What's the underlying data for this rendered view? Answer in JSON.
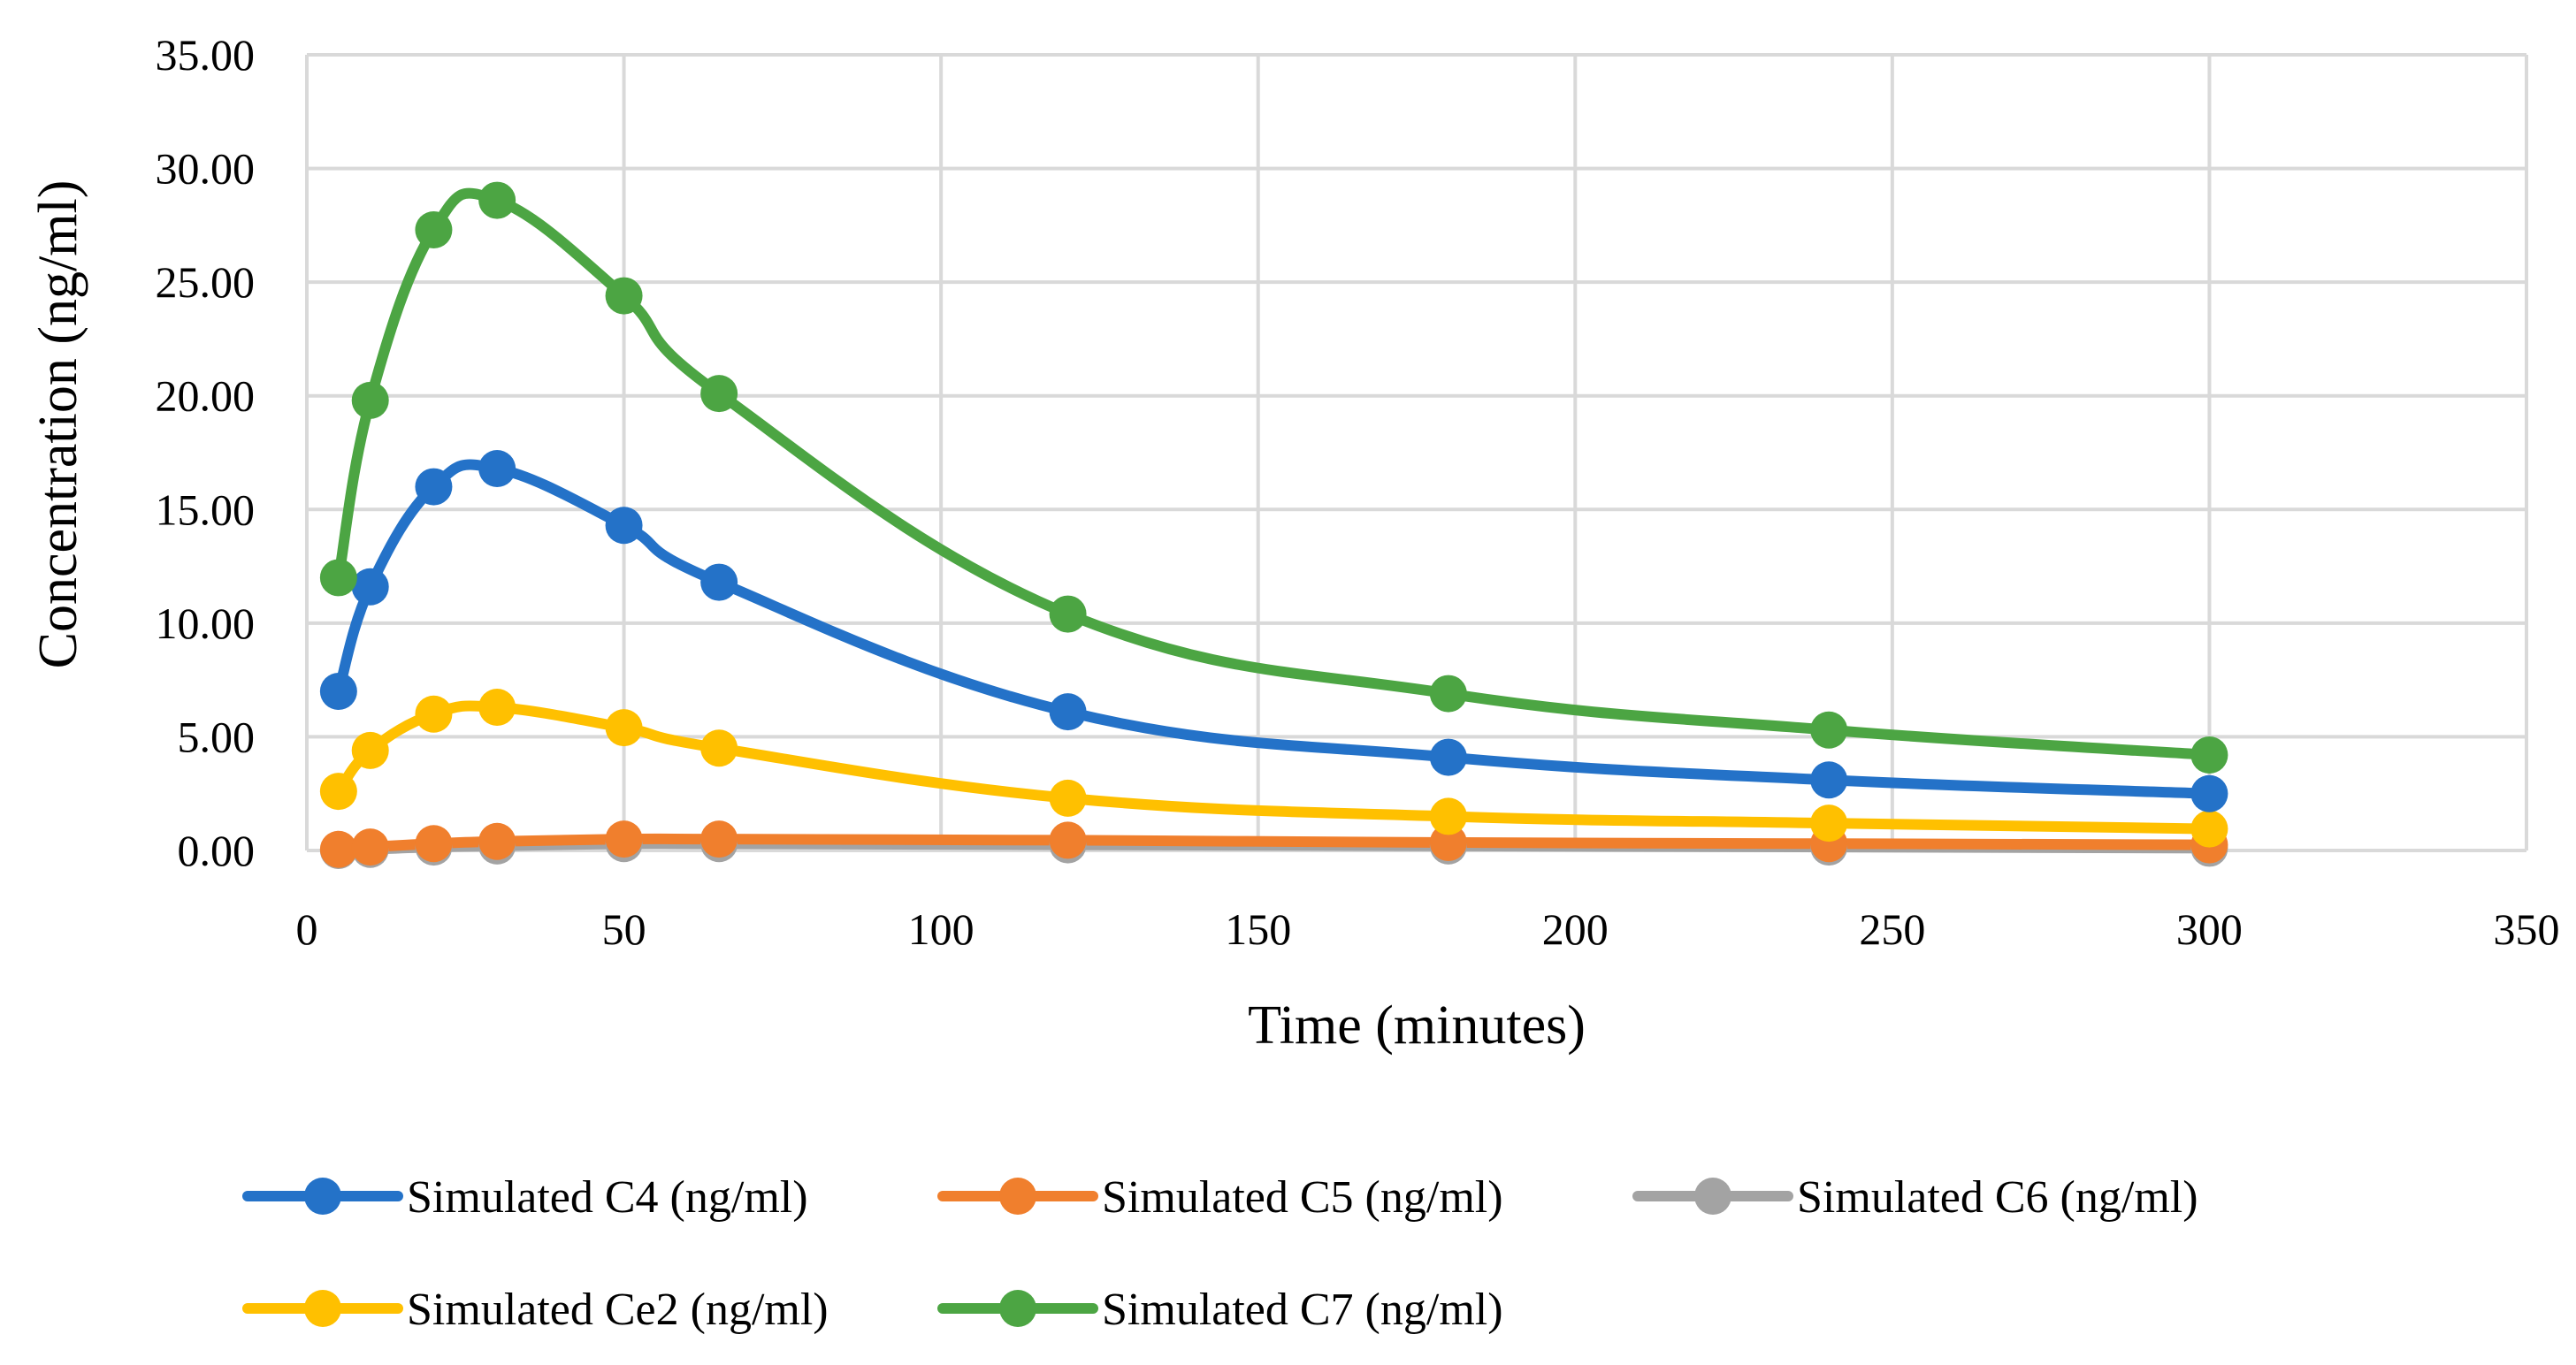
{
  "chart_data": {
    "type": "line",
    "title": "",
    "xlabel": "Time (minutes)",
    "ylabel": "Concentration (ng/ml)",
    "xlim": [
      0,
      350
    ],
    "ylim": [
      0,
      35
    ],
    "x_ticks": [
      "0",
      "50",
      "100",
      "150",
      "200",
      "250",
      "300",
      "350"
    ],
    "y_ticks": [
      "0.00",
      "5.00",
      "10.00",
      "15.00",
      "20.00",
      "25.00",
      "30.00",
      "35.00"
    ],
    "grid": true,
    "legend_position": "bottom",
    "x": [
      5,
      10,
      20,
      30,
      50,
      65,
      120,
      180,
      240,
      300
    ],
    "series": [
      {
        "name": "Simulated C4 (ng/ml)",
        "color": "#2472C8",
        "values": [
          7.0,
          11.6,
          16.0,
          16.8,
          14.3,
          11.8,
          6.1,
          4.1,
          3.1,
          2.5
        ]
      },
      {
        "name": "Simulated C5 (ng/ml)",
        "color": "#F07F2D",
        "values": [
          0.05,
          0.15,
          0.3,
          0.4,
          0.5,
          0.5,
          0.45,
          0.35,
          0.3,
          0.25
        ]
      },
      {
        "name": "Simulated C6 (ng/ml)",
        "color": "#A3A3A3",
        "values": [
          0.0,
          0.05,
          0.15,
          0.2,
          0.3,
          0.3,
          0.25,
          0.2,
          0.15,
          0.1
        ]
      },
      {
        "name": "Simulated Ce2 (ng/ml)",
        "color": "#FFC000",
        "values": [
          2.6,
          4.4,
          6.0,
          6.3,
          5.4,
          4.5,
          2.3,
          1.5,
          1.2,
          0.95
        ]
      },
      {
        "name": "Simulated C7 (ng/ml)",
        "color": "#4CA543",
        "values": [
          12.0,
          19.8,
          27.3,
          28.6,
          24.4,
          20.1,
          10.4,
          6.9,
          5.3,
          4.2
        ]
      }
    ]
  }
}
